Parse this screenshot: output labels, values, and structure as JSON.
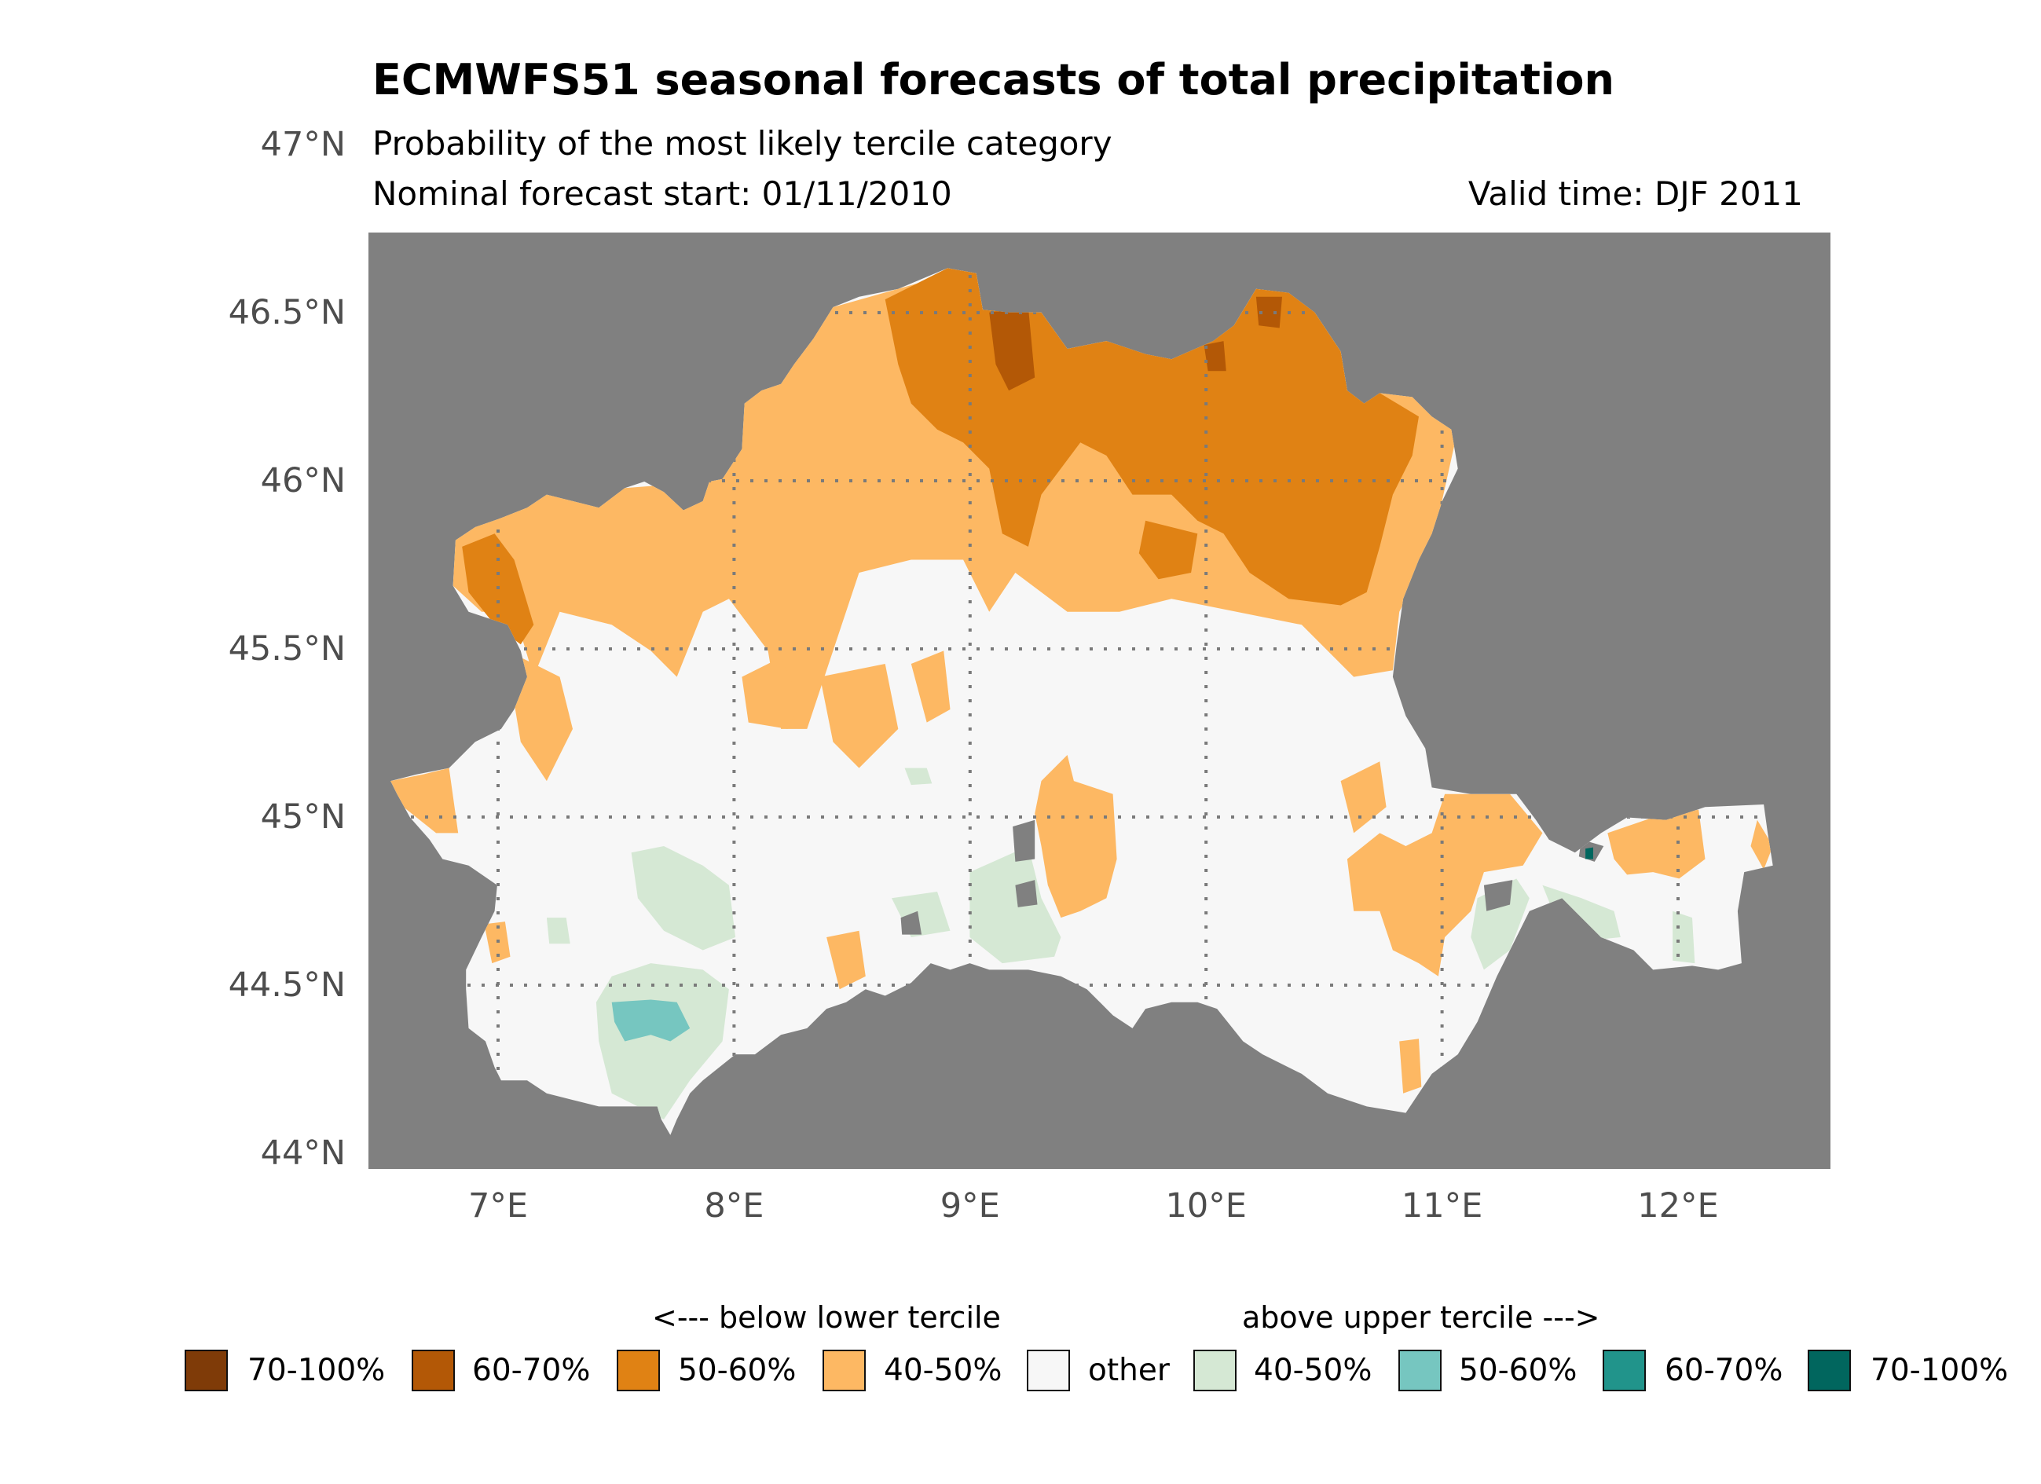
{
  "chart_data": {
    "type": "heatmap",
    "title": "ECMWFS51 seasonal forecasts of total precipitation",
    "subtitle": "Probability of the most likely tercile category",
    "forecast_start": "Nominal forecast start: 01/11/2010",
    "valid_time": "Valid time: DJF 2011",
    "xlabel": "",
    "ylabel": "",
    "xlim": [
      6.45,
      12.65
    ],
    "ylim": [
      43.95,
      46.73
    ],
    "x_ticks": [
      7,
      8,
      9,
      10,
      11,
      12
    ],
    "x_tick_labels": [
      "7°E",
      "8°E",
      "9°E",
      "10°E",
      "11°E",
      "12°E"
    ],
    "y_ticks": [
      44,
      44.5,
      45,
      45.5,
      46,
      46.5,
      47
    ],
    "y_tick_labels": [
      "44°N",
      "44.5°N",
      "45°N",
      "45.5°N",
      "46°N",
      "46.5°N",
      "47°N"
    ],
    "grid": "dotted, over land only",
    "background_color": "#808080",
    "legend": {
      "placement": "bottom",
      "below_header": "<--- below lower tercile",
      "above_header": "above upper tercile --->",
      "entries": [
        {
          "label": "70-100%",
          "color": "#7f3b08",
          "category": "below"
        },
        {
          "label": "60-70%",
          "color": "#b35806",
          "category": "below"
        },
        {
          "label": "50-60%",
          "color": "#e08214",
          "category": "below"
        },
        {
          "label": "40-50%",
          "color": "#fdb863",
          "category": "below"
        },
        {
          "label": "other",
          "color": "#f7f7f7",
          "category": "other"
        },
        {
          "label": "40-50%",
          "color": "#d5e8d4",
          "category": "above"
        },
        {
          "label": "50-60%",
          "color": "#76c6c0",
          "category": "above"
        },
        {
          "label": "60-70%",
          "color": "#21948b",
          "category": "above"
        },
        {
          "label": "70-100%",
          "color": "#01665e",
          "category": "above"
        }
      ]
    },
    "regions": [
      {
        "description_category": "below 50-60%",
        "lon_range": [
          8.7,
          11.0
        ],
        "lat_range": [
          45.6,
          46.6
        ]
      },
      {
        "description_category": "below 60-70%",
        "lon_range": [
          9.1,
          9.3
        ],
        "lat_range": [
          46.3,
          46.5
        ]
      },
      {
        "description_category": "below 40-50%",
        "lon_range": [
          6.7,
          9.6
        ],
        "lat_range": [
          45.2,
          46.0
        ]
      },
      {
        "description_category": "below 40-50%",
        "lon_range": [
          9.3,
          9.6
        ],
        "lat_range": [
          44.7,
          45.15
        ]
      },
      {
        "description_category": "below 40-50%",
        "lon_range": [
          10.6,
          12.4
        ],
        "lat_range": [
          44.2,
          45.0
        ]
      },
      {
        "description_category": "above 40-50%",
        "lon_range": [
          7.4,
          9.5
        ],
        "lat_range": [
          44.1,
          44.9
        ]
      },
      {
        "description_category": "above 50-60%",
        "lon_range": [
          7.5,
          7.8
        ],
        "lat_range": [
          44.3,
          44.45
        ]
      }
    ]
  }
}
